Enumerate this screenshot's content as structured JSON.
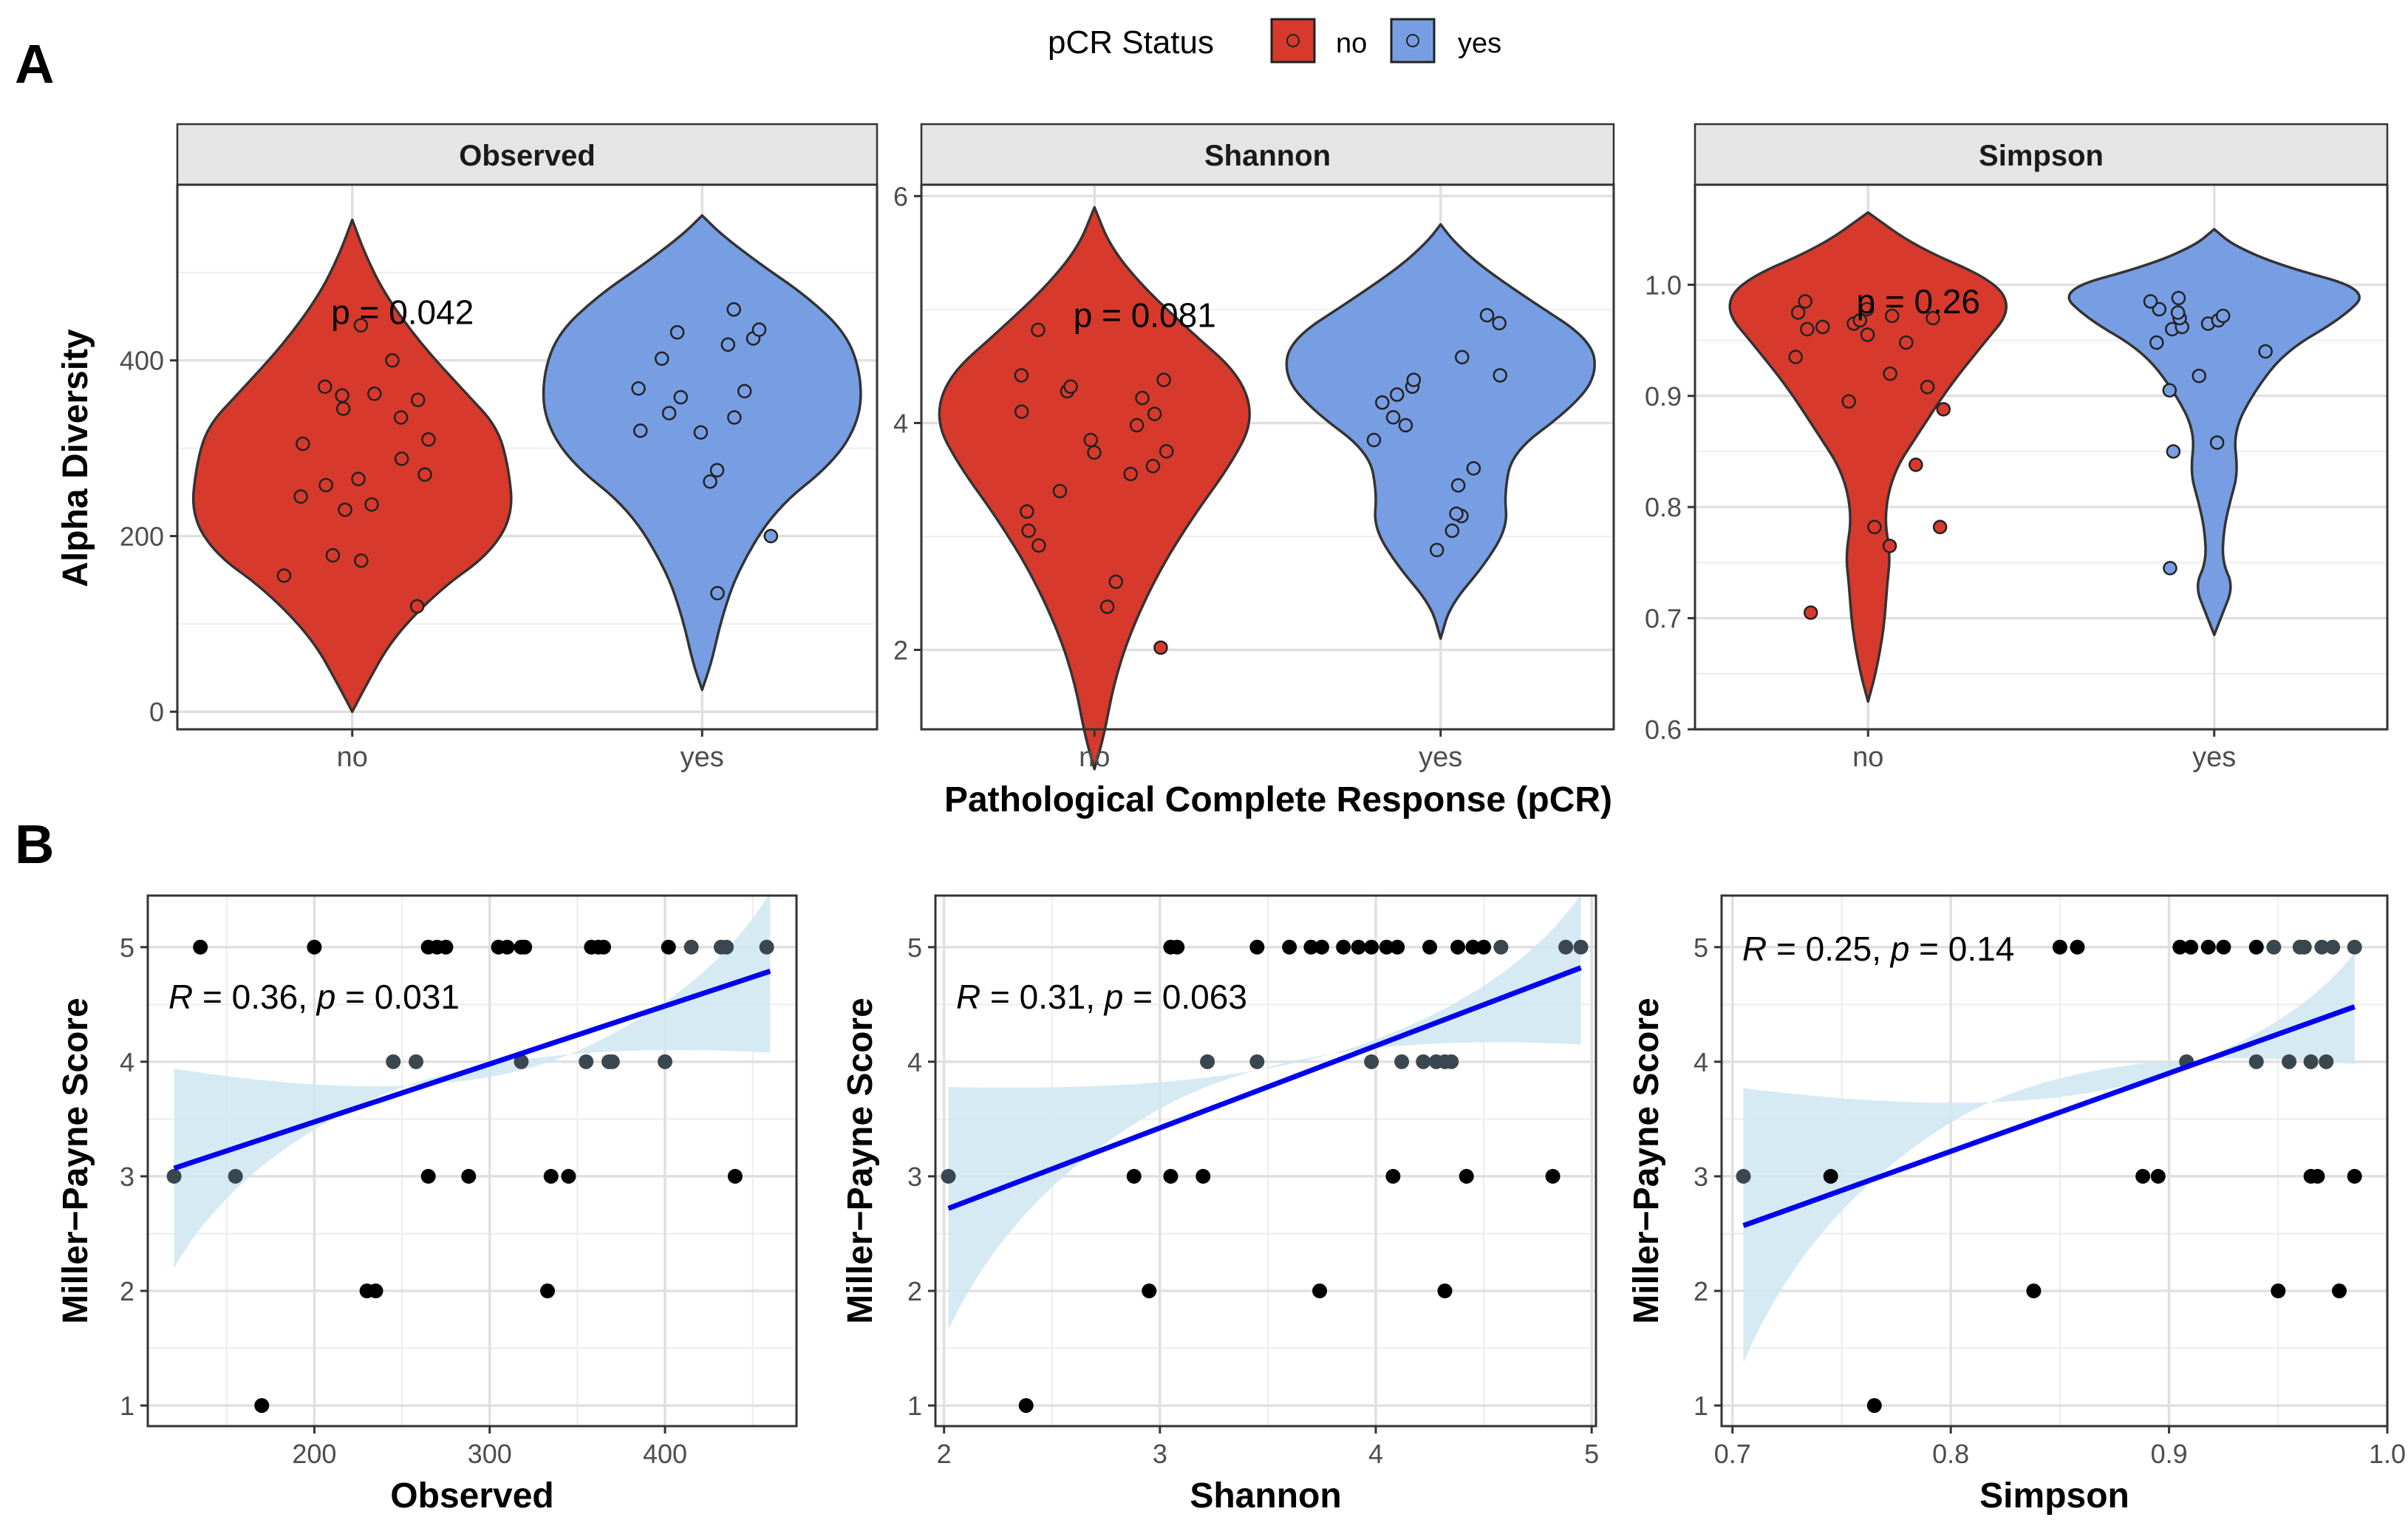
{
  "panel_labels": {
    "a": "A",
    "b": "B"
  },
  "legend": {
    "title": "pCR Status",
    "entries": [
      {
        "label": "no",
        "color": "#d73a2c"
      },
      {
        "label": "yes",
        "color": "#779ee3"
      }
    ]
  },
  "colors": {
    "no": "#d73a2c",
    "yes": "#779ee3",
    "fit_line": "#0000ee",
    "ci_band": "#cfe6f2",
    "point": "#000000",
    "strip": "#e5e5e5"
  },
  "section_a": {
    "x_title": "Pathological Complete Response (pCR)",
    "y_title": "Alpha Diversity"
  },
  "chart_data": [
    {
      "type": "violin",
      "title": "Observed",
      "xlabel": "",
      "ylabel": "Alpha Diversity",
      "categories": [
        "no",
        "yes"
      ],
      "ylim": [
        -20,
        600
      ],
      "yticks": [
        "0",
        "200",
        "400"
      ],
      "annotation": "p = 0.042",
      "series": [
        {
          "name": "no",
          "values": [
            120,
            155,
            172,
            178,
            230,
            236,
            245,
            258,
            265,
            270,
            288,
            305,
            310,
            335,
            345,
            355,
            360,
            362,
            370,
            400,
            440
          ]
        },
        {
          "name": "yes",
          "values": [
            135,
            200,
            262,
            275,
            318,
            320,
            335,
            340,
            358,
            365,
            368,
            402,
            418,
            425,
            432,
            435,
            458
          ]
        }
      ]
    },
    {
      "type": "violin",
      "title": "Shannon",
      "xlabel": "",
      "ylabel": "",
      "categories": [
        "no",
        "yes"
      ],
      "ylim": [
        1.3,
        6.1
      ],
      "yticks": [
        "2",
        "4",
        "6"
      ],
      "annotation": "p = 0.081",
      "series": [
        {
          "name": "no",
          "values": [
            2.02,
            2.38,
            2.6,
            2.92,
            3.05,
            3.22,
            3.4,
            3.55,
            3.62,
            3.74,
            3.75,
            3.85,
            3.98,
            4.08,
            4.1,
            4.22,
            4.28,
            4.32,
            4.38,
            4.42,
            4.82
          ]
        },
        {
          "name": "yes",
          "values": [
            2.88,
            3.05,
            3.18,
            3.2,
            3.45,
            3.6,
            3.85,
            3.98,
            4.05,
            4.18,
            4.25,
            4.32,
            4.38,
            4.42,
            4.58,
            4.88,
            4.95
          ]
        }
      ]
    },
    {
      "type": "violin",
      "title": "Simpson",
      "xlabel": "",
      "ylabel": "",
      "categories": [
        "no",
        "yes"
      ],
      "ylim": [
        0.6,
        1.09
      ],
      "yticks": [
        "0.6",
        "0.7",
        "0.8",
        "0.9",
        "1.0"
      ],
      "annotation": "p = 0.26",
      "series": [
        {
          "name": "no",
          "values": [
            0.705,
            0.765,
            0.782,
            0.782,
            0.838,
            0.888,
            0.895,
            0.908,
            0.92,
            0.935,
            0.948,
            0.955,
            0.96,
            0.962,
            0.965,
            0.968,
            0.97,
            0.972,
            0.975,
            0.978,
            0.985
          ]
        },
        {
          "name": "yes",
          "values": [
            0.745,
            0.85,
            0.858,
            0.905,
            0.918,
            0.94,
            0.948,
            0.96,
            0.962,
            0.965,
            0.968,
            0.97,
            0.972,
            0.975,
            0.978,
            0.985,
            0.988
          ]
        }
      ]
    },
    {
      "type": "scatter",
      "title": "",
      "xlabel": "Observed",
      "ylabel": "Miller−Payne Score",
      "xlim": [
        105,
        475
      ],
      "ylim": [
        0.82,
        5.45
      ],
      "xticks": [
        200,
        300,
        400
      ],
      "yticks": [
        1,
        2,
        3,
        4,
        5
      ],
      "annotation": {
        "text": "R = 0.36, p = 0.031",
        "R": "0.36",
        "p": "0.031"
      },
      "fit": {
        "x": [
          120,
          460
        ],
        "y": [
          3.07,
          4.79
        ],
        "ci_low": [
          2.2,
          4.08
        ],
        "ci_mid": [
          3.55,
          4.22
        ],
        "ci_high": [
          3.94,
          5.48
        ]
      },
      "points": [
        [
          120,
          3
        ],
        [
          135,
          5
        ],
        [
          155,
          3
        ],
        [
          170,
          1
        ],
        [
          200,
          5
        ],
        [
          230,
          2
        ],
        [
          235,
          2
        ],
        [
          245,
          4
        ],
        [
          258,
          4
        ],
        [
          265,
          3
        ],
        [
          265,
          5
        ],
        [
          270,
          5
        ],
        [
          275,
          5
        ],
        [
          288,
          3
        ],
        [
          305,
          5
        ],
        [
          310,
          5
        ],
        [
          318,
          4
        ],
        [
          318,
          5
        ],
        [
          320,
          5
        ],
        [
          333,
          2
        ],
        [
          335,
          3
        ],
        [
          345,
          3
        ],
        [
          355,
          4
        ],
        [
          358,
          5
        ],
        [
          362,
          5
        ],
        [
          365,
          5
        ],
        [
          368,
          4
        ],
        [
          370,
          4
        ],
        [
          400,
          4
        ],
        [
          402,
          5
        ],
        [
          415,
          5
        ],
        [
          432,
          5
        ],
        [
          435,
          5
        ],
        [
          440,
          3
        ],
        [
          458,
          5
        ]
      ]
    },
    {
      "type": "scatter",
      "title": "",
      "xlabel": "Shannon",
      "ylabel": "Miller−Payne Score",
      "xlim": [
        1.96,
        5.02
      ],
      "ylim": [
        0.82,
        5.45
      ],
      "xticks": [
        2,
        3,
        4,
        5
      ],
      "yticks": [
        1,
        2,
        3,
        4,
        5
      ],
      "annotation": {
        "text": "R = 0.31, p = 0.063",
        "R": "0.31",
        "p": "0.063"
      },
      "fit": {
        "x": [
          2.02,
          4.95
        ],
        "y": [
          2.72,
          4.82
        ],
        "ci_low": [
          1.66,
          4.15
        ],
        "ci_mid": [
          3.7,
          4.3
        ],
        "ci_high": [
          3.78,
          5.46
        ]
      },
      "points": [
        [
          2.02,
          3
        ],
        [
          2.38,
          1
        ],
        [
          2.88,
          3
        ],
        [
          2.95,
          2
        ],
        [
          3.05,
          3
        ],
        [
          3.05,
          5
        ],
        [
          3.08,
          5
        ],
        [
          3.2,
          3
        ],
        [
          3.22,
          4
        ],
        [
          3.45,
          4
        ],
        [
          3.45,
          5
        ],
        [
          3.6,
          5
        ],
        [
          3.7,
          5
        ],
        [
          3.74,
          2
        ],
        [
          3.75,
          5
        ],
        [
          3.85,
          5
        ],
        [
          3.92,
          5
        ],
        [
          3.98,
          4
        ],
        [
          3.98,
          5
        ],
        [
          4.05,
          5
        ],
        [
          4.08,
          3
        ],
        [
          4.1,
          5
        ],
        [
          4.12,
          4
        ],
        [
          4.22,
          4
        ],
        [
          4.25,
          5
        ],
        [
          4.28,
          4
        ],
        [
          4.32,
          4
        ],
        [
          4.32,
          2
        ],
        [
          4.35,
          4
        ],
        [
          4.38,
          5
        ],
        [
          4.42,
          3
        ],
        [
          4.45,
          5
        ],
        [
          4.5,
          5
        ],
        [
          4.58,
          5
        ],
        [
          4.82,
          3
        ],
        [
          4.88,
          5
        ],
        [
          4.95,
          5
        ]
      ]
    },
    {
      "type": "scatter",
      "title": "",
      "xlabel": "Simpson",
      "ylabel": "Miller−Payne Score",
      "xlim": [
        0.695,
        1.0
      ],
      "ylim": [
        0.82,
        5.45
      ],
      "xticks": [
        "0.7",
        "0.8",
        "0.9",
        "1.0"
      ],
      "yticks": [
        1,
        2,
        3,
        4,
        5
      ],
      "annotation": {
        "text": "R = 0.25, p = 0.14",
        "R": "0.25",
        "p": "0.14"
      },
      "fit": {
        "x": [
          0.705,
          0.985
        ],
        "y": [
          2.57,
          4.48
        ],
        "ci_low": [
          1.37,
          3.98
        ],
        "ci_mid": [
          3.45,
          4.22
        ],
        "ci_high": [
          3.77,
          4.95
        ]
      },
      "points": [
        [
          0.705,
          3
        ],
        [
          0.745,
          3
        ],
        [
          0.765,
          1
        ],
        [
          0.838,
          2
        ],
        [
          0.85,
          5
        ],
        [
          0.858,
          5
        ],
        [
          0.888,
          3
        ],
        [
          0.895,
          3
        ],
        [
          0.905,
          5
        ],
        [
          0.908,
          4
        ],
        [
          0.91,
          5
        ],
        [
          0.918,
          5
        ],
        [
          0.925,
          5
        ],
        [
          0.94,
          4
        ],
        [
          0.94,
          5
        ],
        [
          0.948,
          5
        ],
        [
          0.95,
          2
        ],
        [
          0.955,
          4
        ],
        [
          0.96,
          5
        ],
        [
          0.962,
          5
        ],
        [
          0.965,
          4
        ],
        [
          0.965,
          3
        ],
        [
          0.968,
          3
        ],
        [
          0.97,
          5
        ],
        [
          0.972,
          4
        ],
        [
          0.975,
          5
        ],
        [
          0.978,
          2
        ],
        [
          0.985,
          3
        ],
        [
          0.985,
          5
        ]
      ]
    }
  ]
}
